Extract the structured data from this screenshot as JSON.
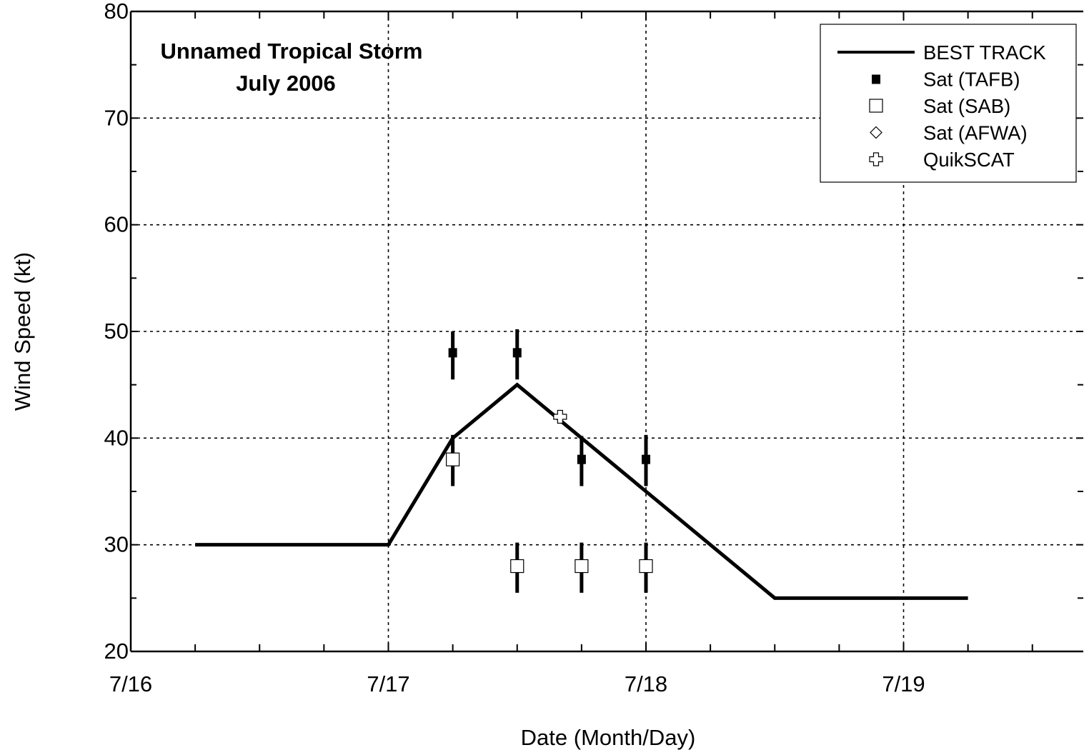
{
  "chart_data": {
    "type": "line",
    "title": "Unnamed Tropical Storm",
    "subtitle": "July 2006",
    "xlabel": "Date (Month/Day)",
    "ylabel": "Wind Speed (kt)",
    "xlim": [
      "7/16 00:00",
      "7/19 18:00"
    ],
    "ylim": [
      20,
      80
    ],
    "x_ticks": [
      "7/16",
      "7/17",
      "7/18",
      "7/19"
    ],
    "y_ticks": [
      20,
      30,
      40,
      50,
      60,
      70,
      80
    ],
    "grid": true,
    "legend_position": "top-right",
    "legend": [
      {
        "label": "BEST TRACK",
        "marker": "line"
      },
      {
        "label": "Sat (TAFB)",
        "marker": "filled-square"
      },
      {
        "label": "Sat (SAB)",
        "marker": "open-square"
      },
      {
        "label": "Sat (AFWA)",
        "marker": "open-diamond"
      },
      {
        "label": "QuikSCAT",
        "marker": "open-cross"
      }
    ],
    "series": [
      {
        "name": "BEST TRACK",
        "style": "line",
        "points": [
          {
            "x": "7/16 06:00",
            "y": 30
          },
          {
            "x": "7/17 00:00",
            "y": 30
          },
          {
            "x": "7/17 06:00",
            "y": 40
          },
          {
            "x": "7/17 12:00",
            "y": 45
          },
          {
            "x": "7/17 18:00",
            "y": 40
          },
          {
            "x": "7/18 00:00",
            "y": 35
          },
          {
            "x": "7/18 12:00",
            "y": 25
          },
          {
            "x": "7/19 06:00",
            "y": 25
          }
        ]
      },
      {
        "name": "Sat (TAFB)",
        "style": "filled-square",
        "points": [
          {
            "x": "7/17 06:00",
            "y": 48,
            "err_low": 45.5,
            "err_high": 50
          },
          {
            "x": "7/17 12:00",
            "y": 48,
            "err_low": 45.5,
            "err_high": 50.2
          },
          {
            "x": "7/17 18:00",
            "y": 38,
            "err_low": 35.5,
            "err_high": 40.2
          },
          {
            "x": "7/18 00:00",
            "y": 38,
            "err_low": 35.5,
            "err_high": 40.3
          }
        ]
      },
      {
        "name": "Sat (SAB)",
        "style": "open-square",
        "points": [
          {
            "x": "7/17 06:00",
            "y": 38,
            "err_low": 35.5,
            "err_high": 40.3
          },
          {
            "x": "7/17 12:00",
            "y": 28,
            "err_low": 25.5,
            "err_high": 30.2
          },
          {
            "x": "7/17 18:00",
            "y": 28,
            "err_low": 25.5,
            "err_high": 30.2
          },
          {
            "x": "7/18 00:00",
            "y": 28,
            "err_low": 25.5,
            "err_high": 30.2
          }
        ]
      },
      {
        "name": "Sat (AFWA)",
        "style": "open-diamond",
        "points": []
      },
      {
        "name": "QuikSCAT",
        "style": "open-cross",
        "points": [
          {
            "x": "7/17 16:00",
            "y": 42
          }
        ]
      }
    ]
  }
}
